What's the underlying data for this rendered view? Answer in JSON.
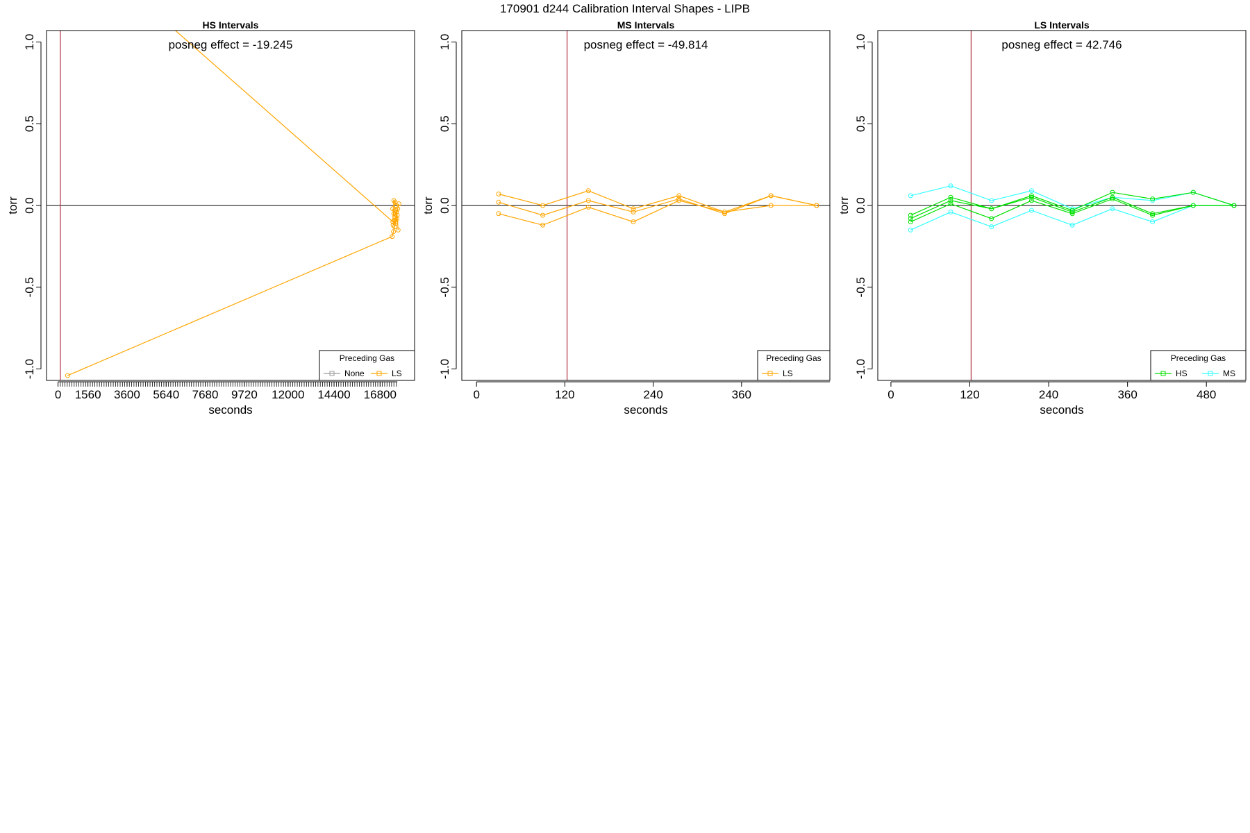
{
  "figure_title": "170901   d244   Calibration Interval Shapes - LIPB",
  "colors": {
    "None": "#999999",
    "LS": "#FFA500",
    "HS": "#00E000",
    "MS": "#33FFFF",
    "vline": "#B03040",
    "zero": "#000000"
  },
  "chart_data": [
    {
      "type": "line",
      "title": "HS Intervals",
      "xlabel": "seconds",
      "ylabel": "torr",
      "annotation": "posneg effect = -19.245",
      "xlim": [
        -600,
        18600
      ],
      "ylim": [
        -1.07,
        1.07
      ],
      "xticks": [
        0,
        1560,
        3600,
        5640,
        7680,
        9720,
        12000,
        14400,
        16800
      ],
      "minor_tick_step": 120,
      "yticks": [
        -1.0,
        -0.5,
        0.0,
        0.5,
        1.0
      ],
      "ytick_labels": [
        "-1.0",
        "-0.5",
        "0.0",
        "0.5",
        "1.0"
      ],
      "vline_x": 120,
      "legend": {
        "title": "Preceding Gas",
        "position": "bottom-right",
        "entries": [
          {
            "name": "None",
            "color": "#999999"
          },
          {
            "name": "LS",
            "color": "#FFA500"
          }
        ]
      },
      "series": [
        {
          "name": "LS",
          "color": "#FFA500",
          "points": [
            [
              5640,
              1.12
            ],
            [
              17470,
              -0.1
            ],
            [
              17520,
              0.03
            ],
            [
              17580,
              0.02
            ],
            [
              17640,
              0.0
            ]
          ]
        },
        {
          "name": "LS",
          "color": "#FFA500",
          "points": [
            [
              500,
              -1.04
            ],
            [
              17430,
              -0.19
            ],
            [
              17500,
              -0.16
            ],
            [
              17560,
              -0.13
            ],
            [
              17620,
              -0.1
            ],
            [
              17680,
              -0.08
            ]
          ]
        },
        {
          "name": "LS",
          "color": "#FFA500",
          "points": [
            [
              17460,
              -0.02
            ],
            [
              17520,
              -0.05
            ],
            [
              17570,
              -0.07
            ],
            [
              17630,
              -0.03
            ],
            [
              17690,
              -0.06
            ],
            [
              17740,
              -0.15
            ]
          ]
        },
        {
          "name": "LS",
          "color": "#FFA500",
          "points": [
            [
              17480,
              -0.12
            ],
            [
              17540,
              -0.09
            ],
            [
              17600,
              -0.11
            ],
            [
              17660,
              -0.04
            ],
            [
              17720,
              -0.02
            ],
            [
              17780,
              0.01
            ]
          ]
        }
      ]
    },
    {
      "type": "line",
      "title": "MS Intervals",
      "xlabel": "seconds",
      "ylabel": "torr",
      "annotation": "posneg effect = -49.814",
      "xlim": [
        -20,
        480
      ],
      "ylim": [
        -1.07,
        1.07
      ],
      "xticks": [
        0,
        120,
        240,
        360
      ],
      "yticks": [
        -1.0,
        -0.5,
        0.0,
        0.5,
        1.0
      ],
      "ytick_labels": [
        "-1.0",
        "-0.5",
        "0.0",
        "0.5",
        "1.0"
      ],
      "vline_x": 123,
      "legend": {
        "title": "Preceding Gas",
        "position": "bottom-right",
        "entries": [
          {
            "name": "LS",
            "color": "#FFA500"
          }
        ]
      },
      "series": [
        {
          "name": "LS",
          "color": "#FFA500",
          "points": [
            [
              30,
              0.07
            ],
            [
              90,
              0.0
            ],
            [
              152,
              0.09
            ],
            [
              213,
              -0.02
            ],
            [
              275,
              0.06
            ],
            [
              337,
              -0.04
            ],
            [
              400,
              0.06
            ],
            [
              462,
              0.0
            ]
          ]
        },
        {
          "name": "LS",
          "color": "#FFA500",
          "points": [
            [
              30,
              0.02
            ],
            [
              90,
              -0.06
            ],
            [
              152,
              0.03
            ],
            [
              213,
              -0.04
            ],
            [
              275,
              0.04
            ],
            [
              337,
              -0.05
            ],
            [
              400,
              0.06
            ],
            [
              462,
              0.0
            ]
          ]
        },
        {
          "name": "LS",
          "color": "#FFA500",
          "points": [
            [
              30,
              -0.05
            ],
            [
              90,
              -0.12
            ],
            [
              152,
              -0.01
            ],
            [
              213,
              -0.1
            ],
            [
              275,
              0.03
            ],
            [
              337,
              -0.04
            ],
            [
              400,
              0.0
            ],
            [
              462,
              0.0
            ]
          ]
        }
      ]
    },
    {
      "type": "line",
      "title": "LS Intervals",
      "xlabel": "seconds",
      "ylabel": "torr",
      "annotation": "posneg effect = 42.746",
      "xlim": [
        -20,
        540
      ],
      "ylim": [
        -1.07,
        1.07
      ],
      "xticks": [
        0,
        120,
        240,
        360,
        480
      ],
      "yticks": [
        -1.0,
        -0.5,
        0.0,
        0.5,
        1.0
      ],
      "ytick_labels": [
        "-1.0",
        "-0.5",
        "0.0",
        "0.5",
        "1.0"
      ],
      "vline_x": 122,
      "legend": {
        "title": "Preceding Gas",
        "position": "bottom-right",
        "entries": [
          {
            "name": "HS",
            "color": "#00E000"
          },
          {
            "name": "MS",
            "color": "#33FFFF"
          }
        ]
      },
      "series": [
        {
          "name": "MS",
          "color": "#33FFFF",
          "points": [
            [
              30,
              0.06
            ],
            [
              91,
              0.12
            ],
            [
              153,
              0.03
            ],
            [
              214,
              0.09
            ],
            [
              276,
              -0.02
            ],
            [
              337,
              0.05
            ],
            [
              398,
              0.03
            ],
            [
              460,
              0.08
            ],
            [
              522,
              0.0
            ]
          ]
        },
        {
          "name": "MS",
          "color": "#33FFFF",
          "points": [
            [
              30,
              -0.15
            ],
            [
              91,
              -0.04
            ],
            [
              153,
              -0.13
            ],
            [
              214,
              -0.03
            ],
            [
              276,
              -0.12
            ],
            [
              337,
              -0.02
            ],
            [
              398,
              -0.1
            ],
            [
              460,
              0.0
            ],
            [
              522,
              0.0
            ]
          ]
        },
        {
          "name": "HS",
          "color": "#00E000",
          "points": [
            [
              30,
              -0.06
            ],
            [
              91,
              0.05
            ],
            [
              153,
              -0.02
            ],
            [
              214,
              0.06
            ],
            [
              276,
              -0.03
            ],
            [
              337,
              0.08
            ],
            [
              398,
              0.04
            ],
            [
              460,
              0.08
            ],
            [
              522,
              0.0
            ]
          ]
        },
        {
          "name": "HS",
          "color": "#00E000",
          "points": [
            [
              30,
              -0.08
            ],
            [
              91,
              0.03
            ],
            [
              153,
              -0.02
            ],
            [
              214,
              0.05
            ],
            [
              276,
              -0.04
            ],
            [
              337,
              0.05
            ],
            [
              398,
              -0.05
            ],
            [
              460,
              0.0
            ],
            [
              522,
              0.0
            ]
          ]
        },
        {
          "name": "HS",
          "color": "#00E000",
          "points": [
            [
              30,
              -0.1
            ],
            [
              91,
              0.01
            ],
            [
              153,
              -0.08
            ],
            [
              214,
              0.03
            ],
            [
              276,
              -0.05
            ],
            [
              337,
              0.04
            ],
            [
              398,
              -0.06
            ],
            [
              460,
              0.0
            ],
            [
              522,
              0.0
            ]
          ]
        }
      ]
    }
  ]
}
